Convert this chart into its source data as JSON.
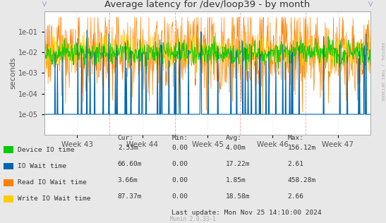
{
  "title": "Average latency for /dev/loop39 - by month",
  "ylabel": "seconds",
  "xtick_labels": [
    "Week 43",
    "Week 44",
    "Week 45",
    "Week 46",
    "Week 47"
  ],
  "ymin": 1e-06,
  "ymax": 1.0,
  "yticks": [
    1e-05,
    0.0001,
    0.001,
    0.01,
    0.1
  ],
  "ytick_labels": [
    "1e-05",
    "1e-04",
    "1e-03",
    "1e-02",
    "1e-01"
  ],
  "background_color": "#e8e8e8",
  "plot_bg_color": "#ffffff",
  "legend_items": [
    {
      "label": "Device IO time",
      "color": "#00cc00"
    },
    {
      "label": "IO Wait time",
      "color": "#0066b3"
    },
    {
      "label": "Read IO Wait time",
      "color": "#ff8000"
    },
    {
      "label": "Write IO Wait time",
      "color": "#ffcc00"
    }
  ],
  "legend_cols": [
    "Cur:",
    "Min:",
    "Avg:",
    "Max:"
  ],
  "legend_data": [
    [
      "2.53m",
      "0.00",
      "4.00m",
      "156.12m"
    ],
    [
      "66.60m",
      "0.00",
      "17.22m",
      "2.61"
    ],
    [
      "3.66m",
      "0.00",
      "1.85m",
      "458.28m"
    ],
    [
      "87.37m",
      "0.00",
      "18.58m",
      "2.66"
    ]
  ],
  "last_update": "Last update: Mon Nov 25 14:10:00 2024",
  "munin_version": "Munin 2.0.33-1",
  "right_label": "RRDTOOL / TOBI OETIKER"
}
